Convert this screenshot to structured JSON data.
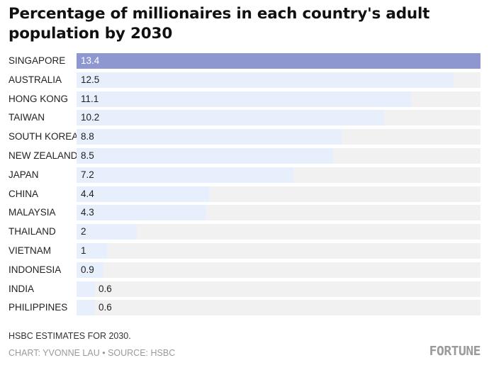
{
  "chart_data": {
    "type": "bar",
    "orientation": "horizontal",
    "title": "Percentage of millionaires in each country's adult population by 2030",
    "categories": [
      "SINGAPORE",
      "AUSTRALIA",
      "HONG KONG",
      "TAIWAN",
      "SOUTH KOREA",
      "NEW ZEALAND",
      "JAPAN",
      "CHINA",
      "MALAYSIA",
      "THAILAND",
      "VIETNAM",
      "INDONESIA",
      "INDIA",
      "PHILIPPINES"
    ],
    "values": [
      13.4,
      12.5,
      11.1,
      10.2,
      8.8,
      8.5,
      7.2,
      4.4,
      4.3,
      2,
      1,
      0.9,
      0.6,
      0.6
    ],
    "value_labels": [
      "13.4",
      "12.5",
      "11.1",
      "10.2",
      "8.8",
      "8.5",
      "7.2",
      "4.4",
      "4.3",
      "2",
      "1",
      "0.9",
      "0.6",
      "0.6"
    ],
    "xlim": [
      0,
      13.4
    ],
    "grid": false,
    "highlight_category": "SINGAPORE"
  },
  "colors": {
    "highlight_bar": "#8f97d0",
    "bar": "#e6effb",
    "track": "#f1f1f1",
    "title": "#111111",
    "muted_text": "#9a9a9a"
  },
  "footer": {
    "note": "HSBC ESTIMATES FOR 2030.",
    "credit": "CHART: YVONNE LAU • SOURCE: HSBC",
    "logo": "FORTUNE"
  }
}
